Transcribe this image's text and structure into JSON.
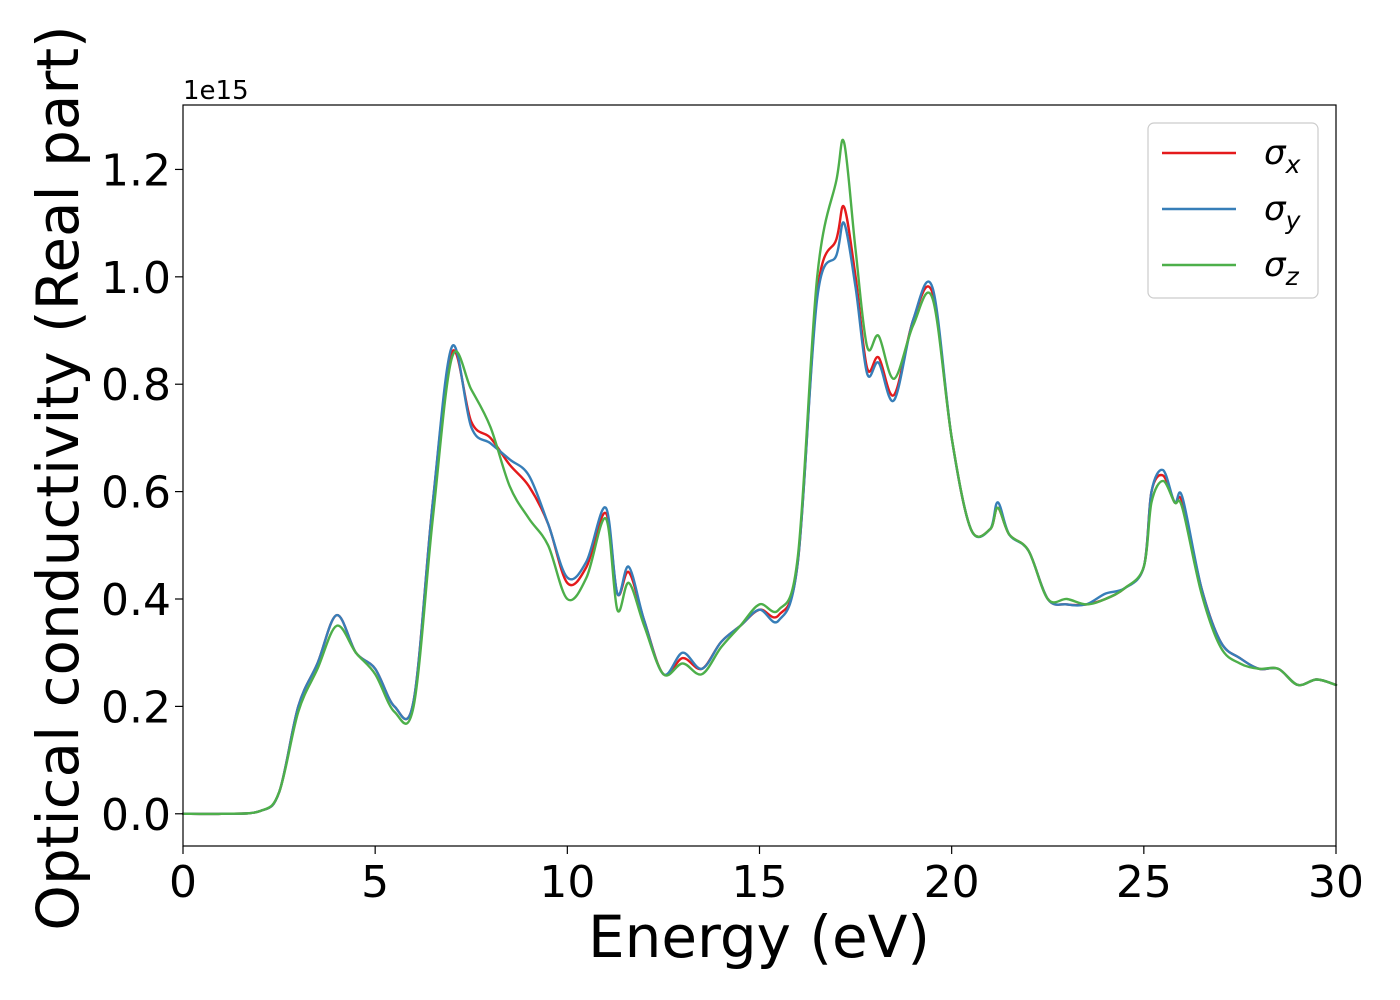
{
  "chart_data": {
    "type": "line",
    "xlabel": "Energy (eV)",
    "ylabel": "Optical conductivity (Real part)",
    "offset_label": "1e15",
    "xlim": [
      0,
      30
    ],
    "ylim": [
      -0.06,
      1.32
    ],
    "x_ticks": [
      0,
      5,
      10,
      15,
      20,
      25,
      30
    ],
    "x_tick_labels": [
      "0",
      "5",
      "10",
      "15",
      "20",
      "25",
      "30"
    ],
    "y_ticks": [
      0.0,
      0.2,
      0.4,
      0.6,
      0.8,
      1.0,
      1.2
    ],
    "y_tick_labels": [
      "0.0",
      "0.2",
      "0.4",
      "0.6",
      "0.8",
      "1.0",
      "1.2"
    ],
    "grid": false,
    "legend_position": "top-right",
    "x": [
      0,
      1,
      2,
      2.5,
      3,
      3.5,
      4,
      4.5,
      5,
      5.5,
      6,
      6.5,
      7,
      7.5,
      8,
      8.5,
      9,
      9.5,
      10,
      10.5,
      11,
      11.3,
      11.6,
      12,
      12.5,
      13,
      13.5,
      14,
      14.5,
      15,
      15.5,
      16,
      16.5,
      17,
      17.2,
      17.5,
      17.8,
      18.1,
      18.5,
      19,
      19.5,
      20,
      20.5,
      21,
      21.2,
      21.5,
      22,
      22.5,
      23,
      23.5,
      24,
      24.5,
      25,
      25.2,
      25.5,
      25.8,
      26,
      26.5,
      27,
      27.5,
      28,
      28.5,
      29,
      29.5,
      30
    ],
    "series": [
      {
        "name": "σ_x",
        "color": "#e41a1c",
        "values": [
          0,
          0,
          0.005,
          0.04,
          0.2,
          0.28,
          0.37,
          0.3,
          0.27,
          0.2,
          0.21,
          0.58,
          0.86,
          0.73,
          0.7,
          0.65,
          0.61,
          0.54,
          0.43,
          0.46,
          0.56,
          0.41,
          0.45,
          0.36,
          0.26,
          0.29,
          0.27,
          0.32,
          0.35,
          0.38,
          0.37,
          0.47,
          0.97,
          1.07,
          1.13,
          1.0,
          0.83,
          0.85,
          0.78,
          0.92,
          0.97,
          0.7,
          0.53,
          0.53,
          0.57,
          0.52,
          0.49,
          0.4,
          0.39,
          0.39,
          0.4,
          0.42,
          0.46,
          0.6,
          0.63,
          0.58,
          0.58,
          0.42,
          0.32,
          0.29,
          0.27,
          0.27,
          0.24,
          0.25,
          0.24
        ]
      },
      {
        "name": "σ_y",
        "color": "#377eb8",
        "values": [
          0,
          0,
          0.005,
          0.04,
          0.2,
          0.28,
          0.37,
          0.3,
          0.27,
          0.2,
          0.21,
          0.58,
          0.87,
          0.72,
          0.69,
          0.66,
          0.63,
          0.54,
          0.44,
          0.47,
          0.57,
          0.41,
          0.46,
          0.36,
          0.26,
          0.3,
          0.27,
          0.32,
          0.35,
          0.38,
          0.36,
          0.47,
          0.96,
          1.04,
          1.1,
          0.98,
          0.82,
          0.84,
          0.77,
          0.92,
          0.98,
          0.7,
          0.53,
          0.53,
          0.58,
          0.52,
          0.49,
          0.4,
          0.39,
          0.39,
          0.41,
          0.42,
          0.46,
          0.6,
          0.64,
          0.58,
          0.59,
          0.42,
          0.32,
          0.29,
          0.27,
          0.27,
          0.24,
          0.25,
          0.24
        ]
      },
      {
        "name": "σ_z",
        "color": "#4daf4a",
        "values": [
          0,
          0,
          0.005,
          0.04,
          0.19,
          0.27,
          0.35,
          0.3,
          0.26,
          0.19,
          0.2,
          0.55,
          0.85,
          0.79,
          0.72,
          0.61,
          0.55,
          0.5,
          0.4,
          0.44,
          0.55,
          0.38,
          0.43,
          0.35,
          0.26,
          0.28,
          0.26,
          0.31,
          0.35,
          0.39,
          0.38,
          0.48,
          1.0,
          1.18,
          1.25,
          1.05,
          0.87,
          0.89,
          0.81,
          0.91,
          0.96,
          0.7,
          0.53,
          0.53,
          0.57,
          0.52,
          0.49,
          0.4,
          0.4,
          0.39,
          0.4,
          0.42,
          0.46,
          0.58,
          0.62,
          0.58,
          0.57,
          0.41,
          0.31,
          0.28,
          0.27,
          0.27,
          0.24,
          0.25,
          0.24
        ]
      }
    ],
    "legend": [
      {
        "symbol": "σ",
        "subscript": "x",
        "color": "#e41a1c"
      },
      {
        "symbol": "σ",
        "subscript": "y",
        "color": "#377eb8"
      },
      {
        "symbol": "σ",
        "subscript": "z",
        "color": "#4daf4a"
      }
    ]
  }
}
